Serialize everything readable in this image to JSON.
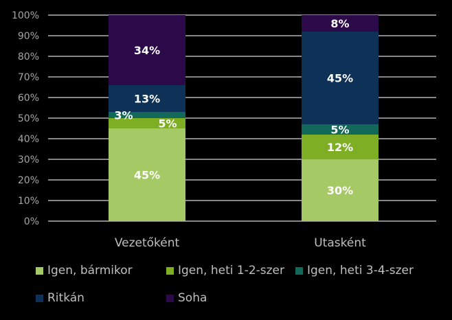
{
  "chart_data": {
    "type": "bar",
    "stacked": true,
    "categories": [
      "Vezetőként",
      "Utasként"
    ],
    "series": [
      {
        "name": "Igen, bármikor",
        "color": "#a5c964",
        "values": [
          45,
          30
        ],
        "labels": [
          "45%",
          "30%"
        ]
      },
      {
        "name": "Igen, heti 1-2-szer",
        "color": "#7dae24",
        "values": [
          5,
          12
        ],
        "labels": [
          "5%",
          "12%"
        ]
      },
      {
        "name": "Igen, heti 3-4-szer",
        "color": "#12695a",
        "values": [
          3,
          5
        ],
        "labels": [
          "3%",
          "5%"
        ]
      },
      {
        "name": "Ritkán",
        "color": "#0d3157",
        "values": [
          13,
          45
        ],
        "labels": [
          "13%",
          "45%"
        ]
      },
      {
        "name": "Soha",
        "color": "#2c0a4a",
        "values": [
          34,
          8
        ],
        "labels": [
          "34%",
          "8%"
        ]
      }
    ],
    "y_ticks": [
      "0%",
      "10%",
      "20%",
      "30%",
      "40%",
      "50%",
      "60%",
      "70%",
      "80%",
      "90%",
      "100%"
    ],
    "ylim": [
      0,
      100
    ],
    "grid": true,
    "legend_position": "bottom",
    "title": "",
    "xlabel": "",
    "ylabel": ""
  }
}
